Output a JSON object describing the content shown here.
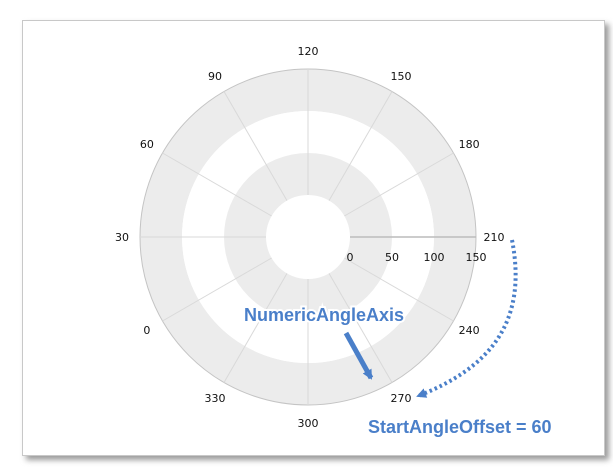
{
  "chart_data": {
    "type": "polar",
    "angle_axis": {
      "label": "",
      "min": 0,
      "max": 330,
      "interval": 30,
      "start_angle_offset": 60,
      "tick_labels": [
        "0",
        "30",
        "60",
        "90",
        "120",
        "150",
        "180",
        "210",
        "240",
        "270",
        "300",
        "330"
      ]
    },
    "radius_axis": {
      "min": 0,
      "max": 150,
      "interval": 50,
      "tick_labels": [
        "0",
        "50",
        "100",
        "150"
      ]
    },
    "series": [],
    "grid": true,
    "annotations": [
      {
        "text": "NumericAngleAxis",
        "color": "#4a7fc9"
      },
      {
        "text": "StartAngleOffset = 60",
        "color": "#4a7fc9"
      }
    ],
    "colors": {
      "band": "#ececec",
      "gridline": "#d9d9d9",
      "axis_line": "#bbbbbb",
      "annotation": "#4a7fc9"
    }
  }
}
